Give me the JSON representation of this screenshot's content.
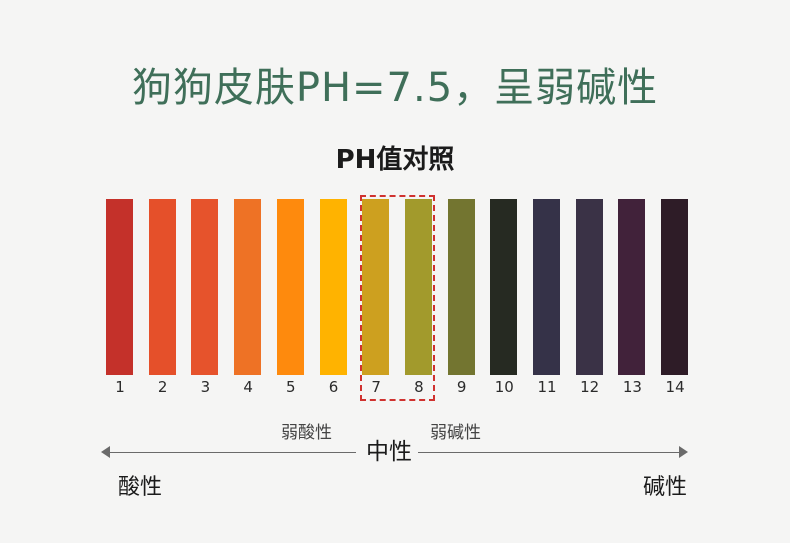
{
  "headline": "狗狗皮肤PH=7.5，呈弱碱性",
  "subtitle": "PH值对照",
  "colors": {
    "headline": "#3f6f59",
    "highlight_border": "#d0322f",
    "background": "#f5f5f4"
  },
  "ph_scale": {
    "bars": [
      {
        "ph": "1",
        "color": "#c4312a"
      },
      {
        "ph": "2",
        "color": "#e5502a"
      },
      {
        "ph": "3",
        "color": "#e6532c"
      },
      {
        "ph": "4",
        "color": "#ee7225"
      },
      {
        "ph": "5",
        "color": "#fe8a0d"
      },
      {
        "ph": "6",
        "color": "#ffb300"
      },
      {
        "ph": "7",
        "color": "#cda01f"
      },
      {
        "ph": "8",
        "color": "#a29a2c"
      },
      {
        "ph": "9",
        "color": "#737530"
      },
      {
        "ph": "10",
        "color": "#262a22"
      },
      {
        "ph": "11",
        "color": "#353248"
      },
      {
        "ph": "12",
        "color": "#3a3246"
      },
      {
        "ph": "13",
        "color": "#41223a"
      },
      {
        "ph": "14",
        "color": "#2e1c27"
      }
    ],
    "highlighted": [
      "7",
      "8"
    ]
  },
  "scale_labels": {
    "weak_acid": "弱酸性",
    "neutral": "中性",
    "weak_base": "弱碱性",
    "acid": "酸性",
    "base": "碱性"
  }
}
